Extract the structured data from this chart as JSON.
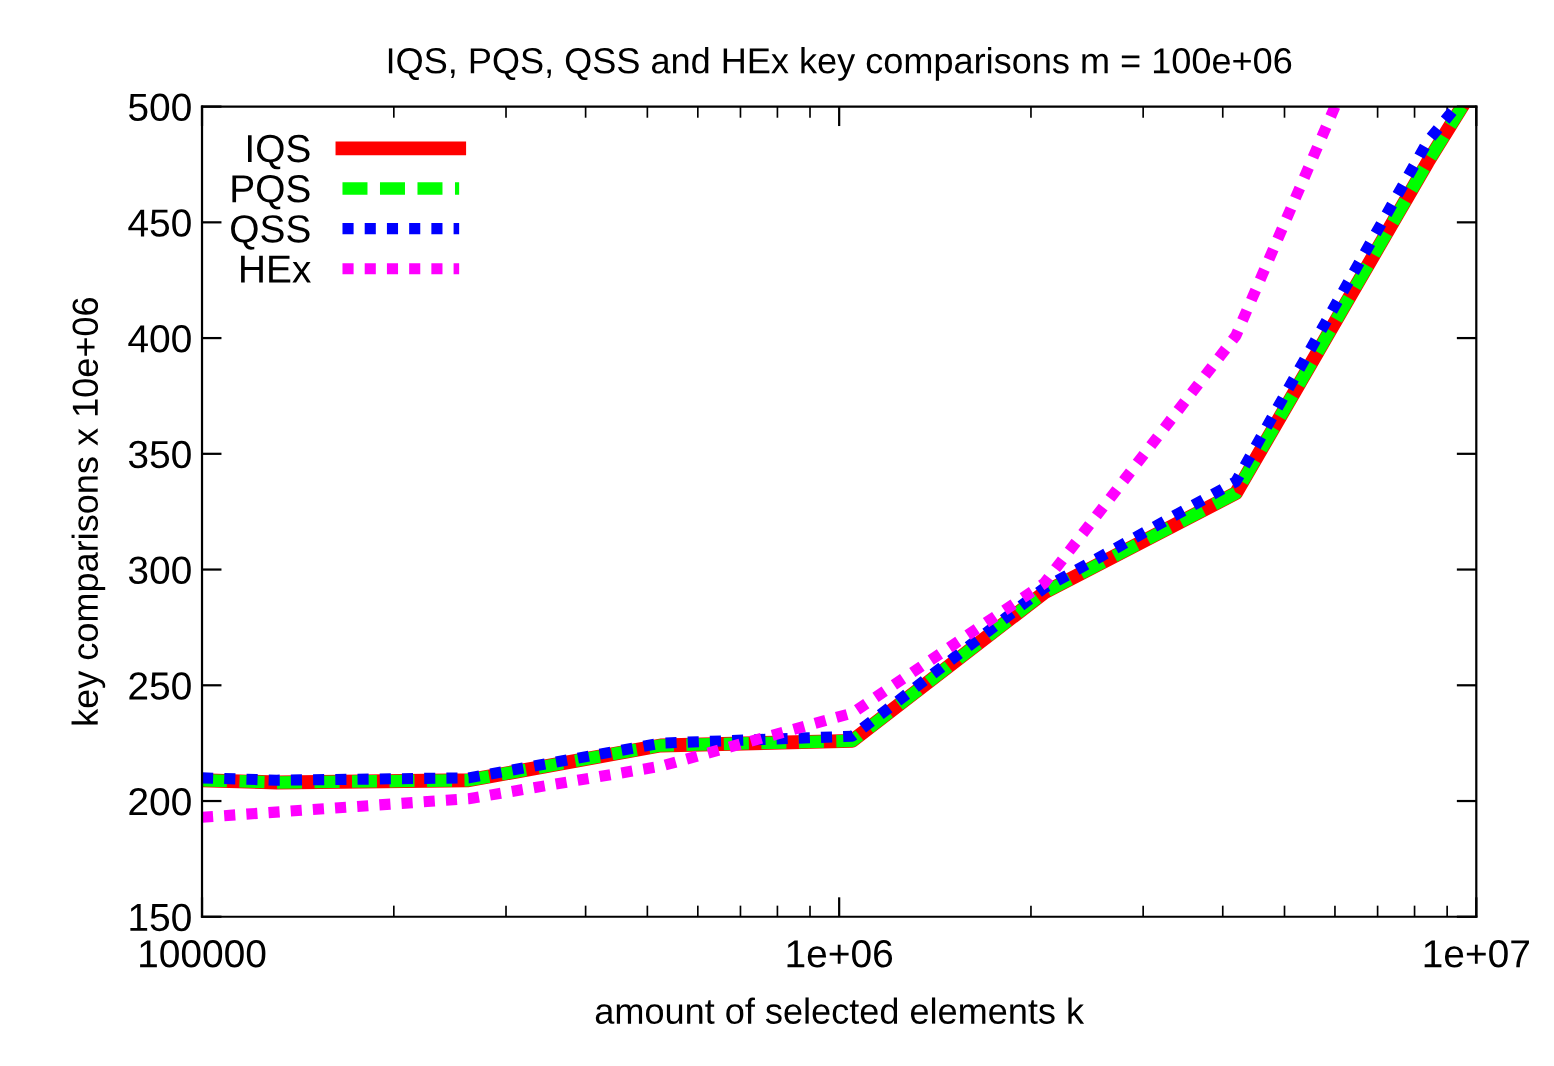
{
  "chart_data": {
    "type": "line",
    "title": "IQS, PQS, QSS and HEx key comparisons m = 100e+06",
    "xlabel": "amount of selected elements k",
    "ylabel": "key comparisons x 10e+06",
    "log": "x",
    "xlim": [
      100000,
      10000000
    ],
    "xticks": [
      {
        "value": 100000,
        "label": "100000"
      },
      {
        "value": 1000000,
        "label": "1e+06"
      },
      {
        "value": 10000000,
        "label": "1e+07"
      }
    ],
    "ylim": [
      150,
      500
    ],
    "yticks": [
      150,
      200,
      250,
      300,
      350,
      400,
      450,
      500
    ],
    "grid": false,
    "legend": "top left",
    "marker": "none",
    "series": [
      {
        "name": "IQS",
        "color": "#ff0000",
        "line_style": "solid",
        "x": [
          100000,
          131072,
          262144,
          524288,
          1048576,
          2097152,
          4194304,
          8388608,
          9500000
        ],
        "values": [
          209,
          208,
          209,
          224,
          226,
          290,
          333,
          476,
          500
        ]
      },
      {
        "name": "PQS",
        "color": "#00ff00",
        "line_style": "dashed",
        "x": [
          100000,
          131072,
          262144,
          524288,
          1048576,
          2097152,
          4194304,
          8388608,
          9500000
        ],
        "values": [
          209,
          208,
          209,
          224,
          226,
          290,
          333,
          476,
          500
        ]
      },
      {
        "name": "QSS",
        "color": "#0000ff",
        "line_style": "dotted",
        "x": [
          100000,
          131072,
          262144,
          524288,
          1048576,
          2097152,
          4194304,
          8388608,
          9300000
        ],
        "values": [
          210,
          209,
          210,
          225,
          228,
          292,
          338,
          485,
          500
        ]
      },
      {
        "name": "HEx",
        "color": "#ff00ff",
        "line_style": "dotted",
        "x": [
          100000,
          262144,
          524288,
          1048576,
          2097152,
          4194304,
          6000000
        ],
        "values": [
          193,
          201,
          215,
          238,
          294,
          401,
          500
        ]
      }
    ]
  }
}
